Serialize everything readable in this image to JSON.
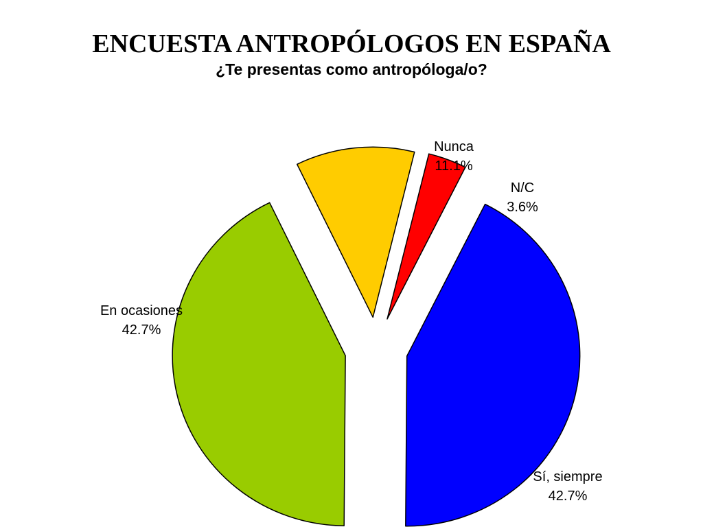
{
  "header": {
    "title": "ENCUESTA ANTROPÓLOGOS EN ESPAÑA",
    "subtitle": "¿Te presentas como antropóloga/o?"
  },
  "chart_data": {
    "type": "pie",
    "title": "ENCUESTA ANTROPÓLOGOS EN ESPAÑA",
    "subtitle": "¿Te presentas como antropóloga/o?",
    "exploded": true,
    "labels_position": "outside",
    "slices": [
      {
        "label": "Nunca",
        "value": 11.1,
        "value_label": "11.1%",
        "color": "#ffcc00"
      },
      {
        "label": "N/C",
        "value": 3.6,
        "value_label": "3.6%",
        "color": "#ff0000"
      },
      {
        "label": "Sí, siempre",
        "value": 42.7,
        "value_label": "42.7%",
        "color": "#0000ff"
      },
      {
        "label": "En ocasiones",
        "value": 42.7,
        "value_label": "42.7%",
        "color": "#99cc00"
      }
    ]
  }
}
